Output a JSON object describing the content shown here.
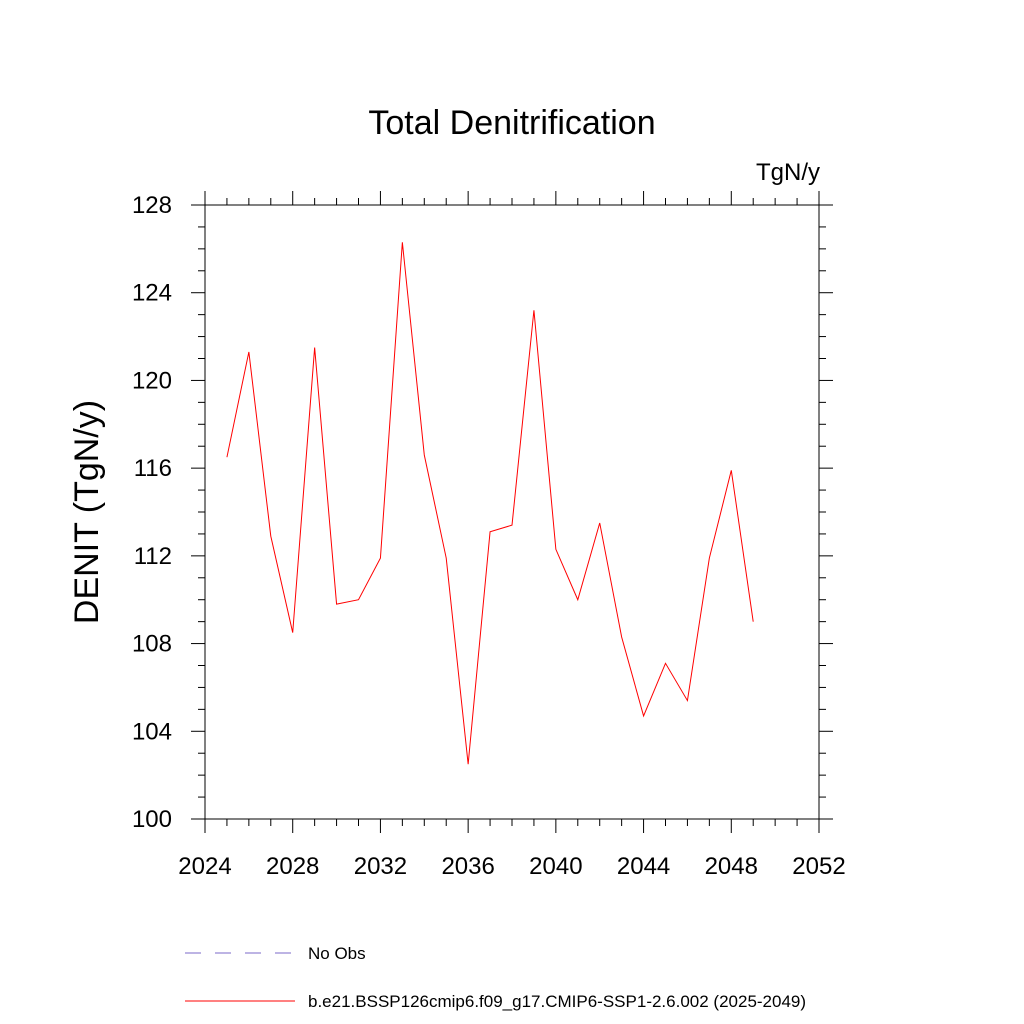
{
  "chart_data": {
    "type": "line",
    "title": "Total Denitrification",
    "units": "TgN/y",
    "xlabel": "",
    "ylabel": "DENIT  (TgN/y)",
    "xlim": [
      2024,
      2052
    ],
    "ylim": [
      100,
      128
    ],
    "xticks": [
      "2024",
      "2028",
      "2032",
      "2036",
      "2040",
      "2044",
      "2048",
      "2052"
    ],
    "yticks": [
      "100",
      "104",
      "108",
      "112",
      "116",
      "120",
      "124",
      "128"
    ],
    "x": [
      2025,
      2026,
      2027,
      2028,
      2029,
      2030,
      2031,
      2032,
      2033,
      2034,
      2035,
      2036,
      2037,
      2038,
      2039,
      2040,
      2041,
      2042,
      2043,
      2044,
      2045,
      2046,
      2047,
      2048,
      2049
    ],
    "series": [
      {
        "name": "b.e21.BSSP126cmip6.f09_g17.CMIP6-SSP1-2.6.002 (2025-2049)",
        "color": "#ff0000",
        "values": [
          116.5,
          121.3,
          112.9,
          108.5,
          121.5,
          109.8,
          110.0,
          111.9,
          126.3,
          116.6,
          111.9,
          102.5,
          113.1,
          113.4,
          123.2,
          112.3,
          110.0,
          113.5,
          108.3,
          104.7,
          107.1,
          105.4,
          111.9,
          115.9,
          109.0
        ]
      }
    ],
    "legend": [
      {
        "label": "No Obs",
        "color": "#7b68c8",
        "style": "dashed"
      },
      {
        "label": "b.e21.BSSP126cmip6.f09_g17.CMIP6-SSP1-2.6.002 (2025-2049)",
        "color": "#ff0000",
        "style": "solid"
      }
    ]
  }
}
